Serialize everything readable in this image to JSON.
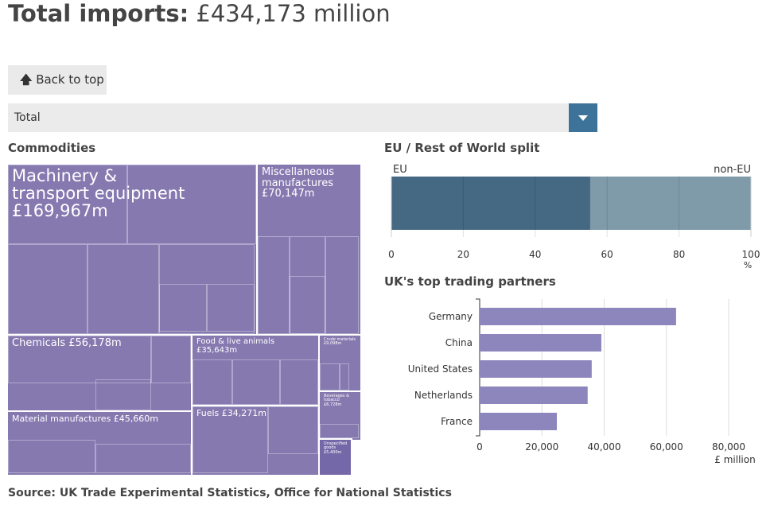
{
  "header": {
    "title_bold": "Total imports:",
    "title_value": "£434,173 million"
  },
  "back_button": {
    "label": "Back to top",
    "icon": "arrow-up-icon"
  },
  "dropdown": {
    "selected": "Total",
    "icon": "chevron-down-icon"
  },
  "treemap": {
    "title": "Commodities",
    "items": [
      {
        "label": "Machinery & transport equipment £169,967m",
        "value": 169967
      },
      {
        "label": "Miscellaneous manufactures £70,147m",
        "value": 70147
      },
      {
        "label": "Chemicals £56,178m",
        "value": 56178
      },
      {
        "label": "Material manufactures £45,660m",
        "value": 45660
      },
      {
        "label": "Food & live animals £35,643m",
        "value": 35643
      },
      {
        "label": "Fuels £34,271m",
        "value": 34271
      },
      {
        "label": "Crude materials £9,098m",
        "value": 9098
      },
      {
        "label": "Beverages & tobacco £6,728m",
        "value": 6728
      },
      {
        "label": "Unspecified goods £5,400m",
        "value": 5400
      }
    ]
  },
  "chart_data": [
    {
      "type": "bar",
      "title": "EU / Rest of World split",
      "categories": [
        "EU",
        "non-EU"
      ],
      "values": [
        55.3,
        44.7
      ],
      "xlim": [
        0,
        100
      ],
      "xticks": [
        "0",
        "20",
        "40",
        "60",
        "80",
        "100"
      ],
      "xlabel": "%",
      "colors": [
        "#456883",
        "#7f9aa8"
      ],
      "stacked": true,
      "grid": true
    },
    {
      "type": "bar",
      "orientation": "horizontal",
      "title": "UK's top trading partners",
      "categories": [
        "Germany",
        "China",
        "United States",
        "Netherlands",
        "France"
      ],
      "values": [
        63100,
        39100,
        36000,
        34700,
        24800
      ],
      "xlim": [
        0,
        80000
      ],
      "xticks": [
        "0",
        "20,000",
        "40,000",
        "60,000",
        "80,000"
      ],
      "xlabel": "£ million",
      "color": "#8d86bd",
      "grid": true
    }
  ],
  "source": "Source: UK Trade Experimental Statistics, Office for National Statistics"
}
